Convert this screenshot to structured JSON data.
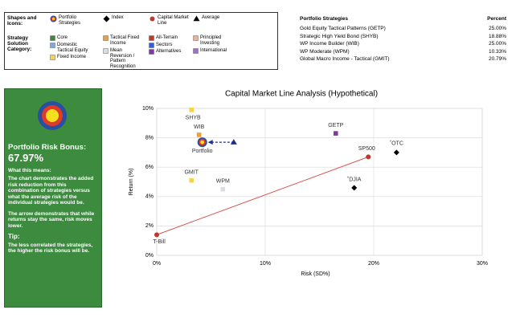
{
  "legend": {
    "shapes_heading": "Shapes and Icons:",
    "category_heading": "Strategy Solution Category:",
    "shapes": [
      {
        "label": "Portfolio Strategies",
        "marker": "target"
      },
      {
        "label": "Index",
        "marker": "diamond",
        "color": "#000000"
      },
      {
        "label": "Capital Market Line",
        "marker": "circle",
        "color": "#c0392b"
      },
      {
        "label": "Average",
        "marker": "triangle",
        "color": "#000000"
      }
    ],
    "categories": [
      {
        "label": "Core",
        "color": "#3a8a3d"
      },
      {
        "label": "Domestic Tactical Equity",
        "color": "#7fa8e0"
      },
      {
        "label": "Fixed Income",
        "color": "#f5d44a"
      },
      {
        "label": "Tactical Fixed Income",
        "color": "#f0a030"
      },
      {
        "label": "Mean Reversion / Pattern Recognition",
        "color": "#dcdce6"
      },
      {
        "label": "All-Terrain",
        "color": "#c0392b"
      },
      {
        "label": "Sectors",
        "color": "#3a5fcd"
      },
      {
        "label": "Alternatives",
        "color": "#7a3d9a"
      },
      {
        "label": "Principled Investing",
        "color": "#f5b090"
      },
      {
        "label": "International",
        "color": "#a070d0"
      }
    ]
  },
  "strategies_table": {
    "header": [
      "Portfolio Strategies",
      "Percent"
    ],
    "rows": [
      [
        "Gold Equity Tactical Patterns (GETP)",
        "25.00%"
      ],
      [
        "Strategic High Yield Bond (SHYB)",
        "18.88%"
      ],
      [
        "WP Income Builder (WIB)",
        "25.00%"
      ],
      [
        "WP Moderate (WPM)",
        "10.33%"
      ],
      [
        "Global Macro Income - Tactical (GMIT)",
        "20.79%"
      ]
    ]
  },
  "panel": {
    "title": "Portfolio Risk Bonus:",
    "value": "67.97%",
    "heading1": "What this means:",
    "text1": "The chart demonstrates the added risk reduction from this combination of strategies versus what the average risk of the individual strategies would be.",
    "text2": "The arrow demonstrates that while returns stay the same, risk moves lower.",
    "heading2": "Tip:",
    "text3": "The less correlated the strategies, the higher the risk bonus will be."
  },
  "chart_data": {
    "type": "scatter",
    "title": "Capital Market Line Analysis (Hypothetical)",
    "x_label": "Risk (SD%)",
    "y_label": "Return (%)",
    "xlim": [
      0,
      30
    ],
    "ylim": [
      0,
      10
    ],
    "xticks": [
      {
        "value": 0,
        "label": "0%"
      },
      {
        "value": 10,
        "label": "10%"
      },
      {
        "value": 20,
        "label": "20%"
      },
      {
        "value": 30,
        "label": "30%"
      }
    ],
    "yticks": [
      {
        "value": 0,
        "label": "0%"
      },
      {
        "value": 2,
        "label": "2%"
      },
      {
        "value": 4,
        "label": "4%"
      },
      {
        "value": 6,
        "label": "6%"
      },
      {
        "value": 8,
        "label": "8%"
      },
      {
        "value": 10,
        "label": "10%"
      }
    ],
    "grid": true,
    "line_color": "#d9534f",
    "arrow_color": "#1f2f8f",
    "series": [
      {
        "name": "T-Bill",
        "marker": "circle",
        "color": "#c0392b",
        "x": [
          0
        ],
        "values": [
          1.4
        ]
      },
      {
        "name": "SP500",
        "marker": "circle",
        "color": "#c0392b",
        "x": [
          19.5
        ],
        "values": [
          6.7
        ]
      },
      {
        "name": "˚OTC",
        "marker": "diamond",
        "color": "#000000",
        "x": [
          22.1
        ],
        "values": [
          7.0
        ]
      },
      {
        "name": "˚DJIA",
        "marker": "diamond",
        "color": "#000000",
        "x": [
          18.2
        ],
        "values": [
          4.6
        ]
      },
      {
        "name": "GETP",
        "marker": "square",
        "color": "#7a3d9a",
        "x": [
          16.5
        ],
        "values": [
          8.3
        ]
      },
      {
        "name": "SHYB",
        "marker": "square",
        "color": "#f5d44a",
        "x": [
          3.2
        ],
        "values": [
          9.9
        ]
      },
      {
        "name": "WIB",
        "marker": "square",
        "color": "#f0a030",
        "x": [
          3.9
        ],
        "values": [
          8.2
        ]
      },
      {
        "name": "Portfolio",
        "marker": "target",
        "x": [
          4.2
        ],
        "values": [
          7.7
        ]
      },
      {
        "marker": "triangle",
        "color": "#1f2f8f",
        "x": [
          7.1
        ],
        "values": [
          7.7
        ]
      },
      {
        "name": "GMIT",
        "marker": "square",
        "color": "#f5d44a",
        "x": [
          3.2
        ],
        "values": [
          5.1
        ]
      },
      {
        "name": "WPM",
        "marker": "square",
        "color": "#dcdce6",
        "x": [
          6.1
        ],
        "values": [
          4.5
        ]
      }
    ]
  }
}
